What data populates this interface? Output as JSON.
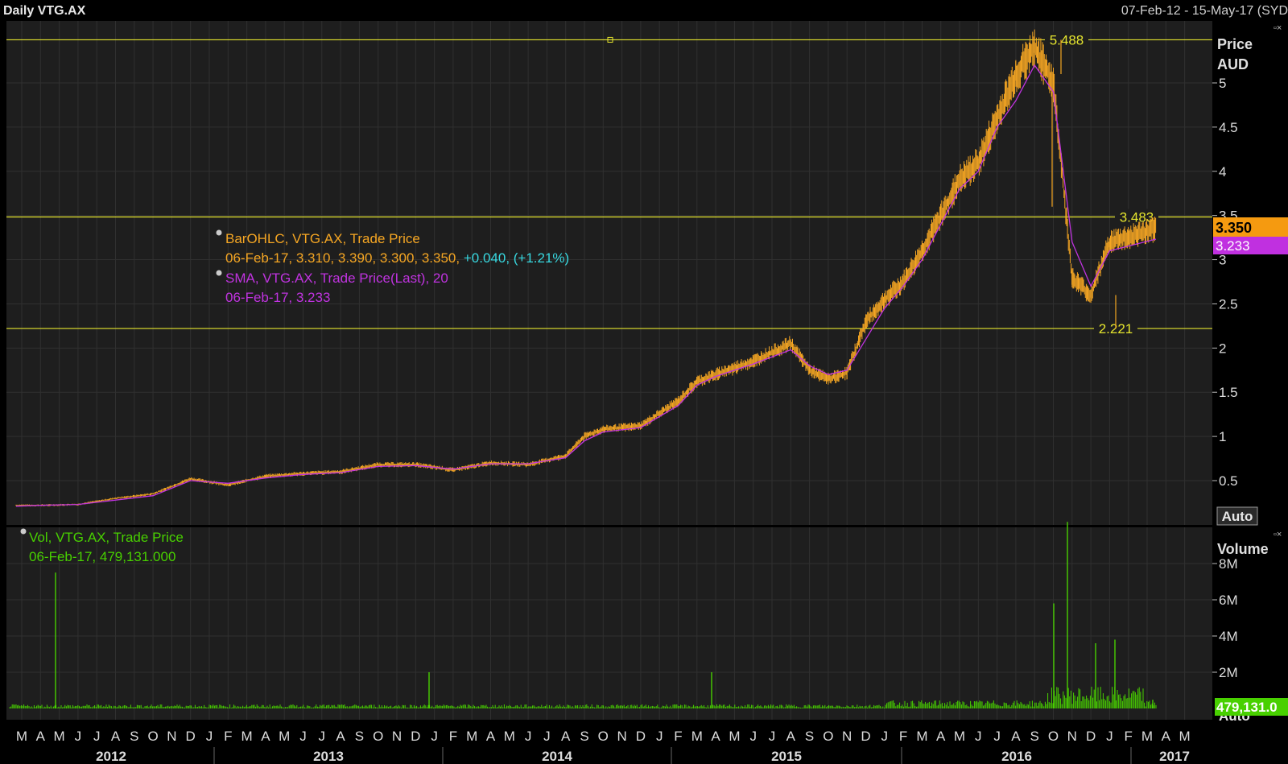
{
  "header": {
    "title": "Daily VTG.AX",
    "date_range": "07-Feb-12 - 15-May-17 (SYD",
    "close_icons": "▫×"
  },
  "price_panel": {
    "axis_title_1": "Price",
    "axis_title_2": "AUD",
    "ticks": [
      "5",
      "4.5",
      "4",
      "3.5",
      "3",
      "2.5",
      "2",
      "1.5",
      "1",
      "0.5"
    ],
    "auto_label": "Auto",
    "last_price_badge": "3.350",
    "sma_badge": "3.233",
    "hlines": [
      {
        "value": 5.488,
        "label": "5.488"
      },
      {
        "value": 3.483,
        "label": "3.483"
      },
      {
        "value": 2.221,
        "label": "2.221"
      }
    ],
    "legend": {
      "line1": "BarOHLC, VTG.AX, Trade Price",
      "line2_values": "06-Feb-17, 3.310, 3.390, 3.300, 3.350,",
      "line2_change": "+0.040, (+1.21%)",
      "line3": "SMA, VTG.AX, Trade Price(Last),  20",
      "line4": "06-Feb-17, 3.233"
    }
  },
  "volume_panel": {
    "axis_title": "Volume",
    "ticks": [
      "8M",
      "6M",
      "4M",
      "2M"
    ],
    "last_volume_badge": "479,131.0",
    "auto_label": "Auto",
    "legend": {
      "line1": "Vol, VTG.AX, Trade Price",
      "line2": "06-Feb-17, 479,131.000"
    }
  },
  "x_axis": {
    "month_letters": [
      "M",
      "A",
      "M",
      "J",
      "J",
      "A",
      "S",
      "O",
      "N",
      "D",
      "J",
      "F",
      "M",
      "A",
      "M",
      "J",
      "J",
      "A",
      "S",
      "O",
      "N",
      "D",
      "J",
      "F",
      "M",
      "A",
      "M",
      "J",
      "J",
      "A",
      "S",
      "O",
      "N",
      "D",
      "J",
      "F",
      "M",
      "A",
      "M",
      "J",
      "J",
      "A",
      "S",
      "O",
      "N",
      "D",
      "J",
      "F",
      "M",
      "A",
      "M",
      "J",
      "J",
      "A",
      "S",
      "O",
      "N",
      "D",
      "J",
      "F",
      "M",
      "A",
      "M"
    ],
    "years": [
      "2012",
      "2013",
      "2014",
      "2015",
      "2016",
      "2017"
    ]
  },
  "colors": {
    "background": "#000000",
    "panel": "#1e1e1e",
    "grid": "#303030",
    "price_bars": "#f5a623",
    "sma_line": "#c033e0",
    "hline": "#e5e52e",
    "volume": "#48d000",
    "axis_text": "#dcdcdc",
    "change_text": "#38d8e0"
  },
  "chart_data": [
    {
      "type": "line",
      "series_type": "ohlc",
      "x": [
        "2012-02",
        "2012-04",
        "2012-06",
        "2012-08",
        "2012-10",
        "2012-12",
        "2013-02",
        "2013-04",
        "2013-06",
        "2013-08",
        "2013-10",
        "2013-12",
        "2014-02",
        "2014-04",
        "2014-06",
        "2014-08",
        "2014-09",
        "2014-10",
        "2014-12",
        "2015-02",
        "2015-03",
        "2015-04",
        "2015-06",
        "2015-08",
        "2015-09",
        "2015-10",
        "2015-11",
        "2015-12",
        "2016-01",
        "2016-02",
        "2016-03",
        "2016-04",
        "2016-05",
        "2016-06",
        "2016-07",
        "2016-08",
        "2016-09",
        "2016-10",
        "2016-11",
        "2016-12",
        "2017-01",
        "2017-02"
      ],
      "series": [
        {
          "name": "BarOHLC, VTG.AX, Trade Price",
          "values": [
            0.22,
            0.22,
            0.23,
            0.3,
            0.35,
            0.52,
            0.45,
            0.55,
            0.58,
            0.6,
            0.68,
            0.68,
            0.62,
            0.7,
            0.68,
            0.78,
            1.0,
            1.08,
            1.12,
            1.4,
            1.62,
            1.7,
            1.85,
            2.05,
            1.75,
            1.65,
            1.72,
            2.3,
            2.55,
            2.75,
            3.1,
            3.5,
            3.9,
            4.1,
            4.6,
            5.1,
            5.4,
            5.0,
            2.8,
            2.6,
            3.2,
            3.35
          ]
        },
        {
          "name": "SMA, VTG.AX, Trade Price(Last),  20",
          "values": [
            0.21,
            0.22,
            0.23,
            0.28,
            0.33,
            0.5,
            0.47,
            0.53,
            0.57,
            0.59,
            0.66,
            0.67,
            0.63,
            0.69,
            0.69,
            0.76,
            0.95,
            1.05,
            1.1,
            1.35,
            1.58,
            1.68,
            1.82,
            1.98,
            1.8,
            1.7,
            1.75,
            2.1,
            2.45,
            2.7,
            3.0,
            3.4,
            3.8,
            4.0,
            4.5,
            4.8,
            5.2,
            4.9,
            3.2,
            2.7,
            3.1,
            3.233
          ]
        }
      ],
      "ylim": [
        0,
        5.6
      ],
      "reference_lines": [
        5.488,
        3.483,
        2.221
      ],
      "last": {
        "date": "06-Feb-17",
        "open": 3.31,
        "high": 3.39,
        "low": 3.3,
        "close": 3.35,
        "change": 0.04,
        "change_pct": 1.21,
        "sma": 3.233
      }
    },
    {
      "type": "bar",
      "title": "Vol, VTG.AX, Trade Price",
      "ylim": [
        0,
        10000000
      ],
      "x": [
        "2012-05",
        "2013-10",
        "2015-02",
        "2016-09",
        "2016-09b",
        "2016-11",
        "2016-12",
        "2017-02"
      ],
      "values": [
        7500000,
        2000000,
        2000000,
        5800000,
        10300000,
        3600000,
        3800000,
        479131
      ],
      "last": {
        "date": "06-Feb-17",
        "volume": 479131.0
      }
    }
  ]
}
